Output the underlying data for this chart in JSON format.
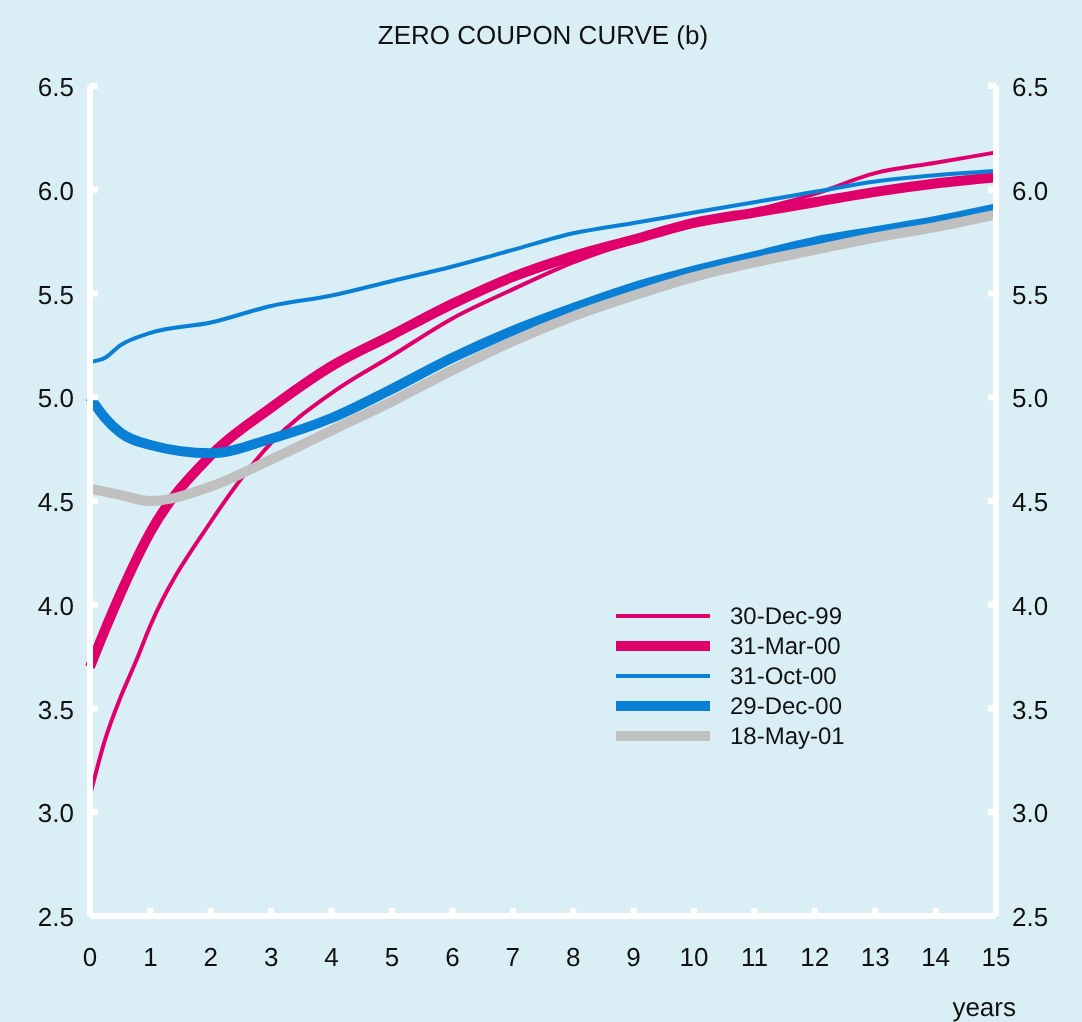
{
  "chart_data": {
    "type": "line",
    "title": "ZERO COUPON CURVE (b)",
    "xlabel": "years",
    "xlim": [
      0,
      15
    ],
    "xticks": [
      0,
      1,
      2,
      3,
      4,
      5,
      6,
      7,
      8,
      9,
      10,
      11,
      12,
      13,
      14,
      15
    ],
    "ylim": [
      2.5,
      6.5
    ],
    "yticks": [
      {
        "value": 2.5,
        "label": "2.5"
      },
      {
        "value": 3,
        "label": "3.0"
      },
      {
        "value": 3.5,
        "label": "3.5"
      },
      {
        "value": 4,
        "label": "4.0"
      },
      {
        "value": 4.5,
        "label": "4.5"
      },
      {
        "value": 5,
        "label": "5.0"
      },
      {
        "value": 5.5,
        "label": "5.5"
      },
      {
        "value": 6,
        "label": "6.0"
      },
      {
        "value": 6.5,
        "label": "6.5"
      }
    ],
    "y2lim": [
      2.5,
      6.5
    ],
    "y2ticks": [
      {
        "value": 2.5,
        "label": "2.5"
      },
      {
        "value": 3,
        "label": "3.0"
      },
      {
        "value": 3.5,
        "label": "3.5"
      },
      {
        "value": 4,
        "label": "4.0"
      },
      {
        "value": 4.5,
        "label": "4.5"
      },
      {
        "value": 5,
        "label": "5.0"
      },
      {
        "value": 5.5,
        "label": "5.5"
      },
      {
        "value": 6,
        "label": "6.0"
      },
      {
        "value": 6.5,
        "label": "6.5"
      }
    ],
    "grid": false,
    "legend": "bottom right",
    "series": [
      {
        "name": "30-Dec-99",
        "color": "#e0006c",
        "x": [
          0,
          0.25,
          0.5,
          0.75,
          1,
          2,
          3,
          4,
          5,
          6,
          7,
          8,
          9,
          10,
          11,
          12,
          13,
          14,
          15
        ],
        "values": [
          3.08,
          3.35,
          3.55,
          3.72,
          3.9,
          4.4,
          4.78,
          5.02,
          5.2,
          5.38,
          5.52,
          5.65,
          5.75,
          5.83,
          5.9,
          5.98,
          6.08,
          6.13,
          6.18
        ]
      },
      {
        "name": "31-Mar-00",
        "color": "#e0006c",
        "x": [
          0,
          0.25,
          0.5,
          1,
          2,
          3,
          4,
          5,
          6,
          7,
          8,
          9,
          10,
          11,
          12,
          13,
          14,
          15
        ],
        "values": [
          3.7,
          3.88,
          4.05,
          4.35,
          4.72,
          4.95,
          5.15,
          5.3,
          5.45,
          5.58,
          5.68,
          5.76,
          5.84,
          5.89,
          5.94,
          5.99,
          6.03,
          6.06
        ]
      },
      {
        "name": "31-Oct-00",
        "color": "#0a7fd6",
        "x": [
          0,
          0.25,
          0.5,
          1,
          2,
          3,
          4,
          5,
          6,
          7,
          8,
          9,
          10,
          11,
          12,
          13,
          14,
          15
        ],
        "values": [
          5.17,
          5.19,
          5.25,
          5.31,
          5.36,
          5.44,
          5.49,
          5.56,
          5.63,
          5.71,
          5.79,
          5.84,
          5.89,
          5.94,
          5.99,
          6.04,
          6.07,
          6.09
        ]
      },
      {
        "name": "29-Dec-00",
        "color": "#0a7fd6",
        "x": [
          0,
          0.25,
          0.5,
          1,
          2,
          3,
          4,
          5,
          6,
          7,
          8,
          9,
          10,
          11,
          12,
          13,
          14,
          15
        ],
        "values": [
          5.0,
          4.9,
          4.83,
          4.77,
          4.73,
          4.8,
          4.9,
          5.04,
          5.19,
          5.32,
          5.43,
          5.53,
          5.61,
          5.68,
          5.75,
          5.8,
          5.85,
          5.91
        ]
      },
      {
        "name": "18-May-01",
        "color": "#c0c0c0",
        "x": [
          0,
          0.5,
          1,
          2,
          3,
          4,
          5,
          6,
          7,
          8,
          9,
          10,
          11,
          12,
          13,
          14,
          15
        ],
        "values": [
          4.56,
          4.53,
          4.5,
          4.57,
          4.7,
          4.84,
          4.98,
          5.13,
          5.27,
          5.39,
          5.49,
          5.58,
          5.65,
          5.71,
          5.77,
          5.82,
          5.88
        ]
      }
    ]
  }
}
